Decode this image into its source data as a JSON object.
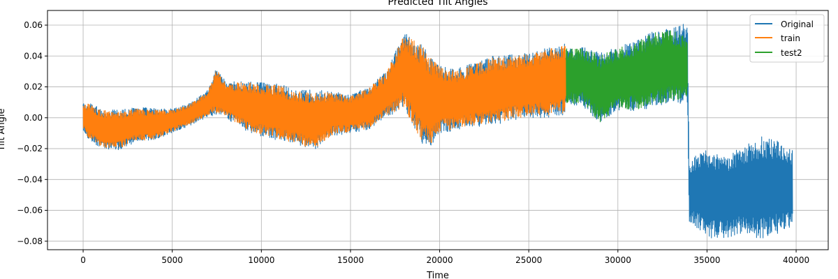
{
  "chart_data": {
    "type": "line",
    "title": "Predicted Tilt Angles",
    "xlabel": "Time",
    "ylabel": "Tilt Angle",
    "xlim": [
      -2000,
      41800
    ],
    "ylim": [
      -0.0855,
      0.0695
    ],
    "xticks": [
      0,
      5000,
      10000,
      15000,
      20000,
      25000,
      30000,
      35000,
      40000
    ],
    "yticks": [
      -0.08,
      -0.06,
      -0.04,
      -0.02,
      0.0,
      0.02,
      0.04,
      0.06
    ],
    "ytick_labels": [
      "−0.08",
      "−0.06",
      "−0.04",
      "−0.02",
      "0.00",
      "0.02",
      "0.04",
      "0.06"
    ],
    "grid": true,
    "legend_position": "top-right",
    "series": [
      {
        "name": "Original",
        "color": "#1f77b4",
        "x_range": [
          0,
          39800
        ],
        "envelope": {
          "x": [
            0,
            300,
            1000,
            2000,
            3000,
            4000,
            5000,
            6000,
            7000,
            7500,
            8000,
            9000,
            10000,
            11000,
            12000,
            13000,
            14000,
            15000,
            16000,
            17000,
            18000,
            19000,
            19500,
            20000,
            21000,
            22000,
            23000,
            24000,
            25000,
            26000,
            27000,
            27100,
            28000,
            29000,
            30000,
            31000,
            32000,
            33000,
            33900,
            34000,
            34500,
            35000,
            36000,
            37000,
            38000,
            39000,
            39800
          ],
          "upper": [
            0.009,
            0.01,
            0.006,
            0.005,
            0.007,
            0.006,
            0.006,
            0.01,
            0.018,
            0.034,
            0.023,
            0.024,
            0.023,
            0.022,
            0.018,
            0.018,
            0.017,
            0.015,
            0.02,
            0.03,
            0.055,
            0.048,
            0.04,
            0.034,
            0.032,
            0.036,
            0.04,
            0.041,
            0.042,
            0.045,
            0.048,
            0.046,
            0.046,
            0.042,
            0.046,
            0.05,
            0.056,
            0.058,
            0.063,
            -0.03,
            -0.022,
            -0.02,
            -0.025,
            -0.018,
            -0.012,
            -0.015,
            -0.02
          ],
          "lower": [
            -0.008,
            -0.014,
            -0.02,
            -0.021,
            -0.016,
            -0.015,
            -0.01,
            -0.005,
            0.0,
            0.002,
            0.0,
            -0.008,
            -0.012,
            -0.015,
            -0.018,
            -0.021,
            -0.012,
            -0.01,
            -0.008,
            0.0,
            0.006,
            -0.017,
            -0.019,
            -0.01,
            -0.008,
            -0.006,
            -0.005,
            -0.002,
            0.0,
            0.0,
            0.002,
            0.008,
            0.008,
            -0.004,
            0.005,
            0.004,
            0.007,
            0.01,
            0.008,
            -0.068,
            -0.072,
            -0.078,
            -0.078,
            -0.075,
            -0.079,
            -0.075,
            -0.07
          ]
        }
      },
      {
        "name": "train",
        "color": "#ff7f0e",
        "x_range": [
          0,
          27100
        ],
        "envelope": {
          "x": [
            0,
            300,
            1000,
            2000,
            3000,
            4000,
            5000,
            6000,
            7000,
            7500,
            8000,
            9000,
            10000,
            11000,
            12000,
            13000,
            14000,
            15000,
            16000,
            17000,
            18000,
            19000,
            19500,
            20000,
            21000,
            22000,
            23000,
            24000,
            25000,
            26000,
            27000,
            27100
          ],
          "upper": [
            0.008,
            0.009,
            0.005,
            0.004,
            0.006,
            0.005,
            0.005,
            0.009,
            0.017,
            0.033,
            0.022,
            0.023,
            0.022,
            0.021,
            0.017,
            0.017,
            0.016,
            0.014,
            0.019,
            0.029,
            0.054,
            0.047,
            0.039,
            0.033,
            0.031,
            0.035,
            0.039,
            0.04,
            0.041,
            0.044,
            0.047,
            0.045
          ],
          "lower": [
            -0.007,
            -0.013,
            -0.019,
            -0.02,
            -0.015,
            -0.014,
            -0.009,
            -0.004,
            0.001,
            0.003,
            0.001,
            -0.007,
            -0.011,
            -0.014,
            -0.017,
            -0.02,
            -0.011,
            -0.009,
            -0.007,
            0.001,
            0.007,
            -0.016,
            -0.018,
            -0.009,
            -0.007,
            -0.005,
            -0.004,
            -0.001,
            0.001,
            0.001,
            0.003,
            0.009
          ]
        }
      },
      {
        "name": "test2",
        "color": "#2ca02c",
        "x_range": [
          27100,
          33900
        ],
        "envelope": {
          "x": [
            27100,
            28000,
            29000,
            30000,
            31000,
            32000,
            33000,
            33900
          ],
          "upper": [
            0.045,
            0.045,
            0.041,
            0.045,
            0.049,
            0.055,
            0.057,
            0.052
          ],
          "lower": [
            0.009,
            0.009,
            -0.003,
            0.006,
            0.005,
            0.008,
            0.011,
            0.012
          ]
        }
      }
    ]
  }
}
